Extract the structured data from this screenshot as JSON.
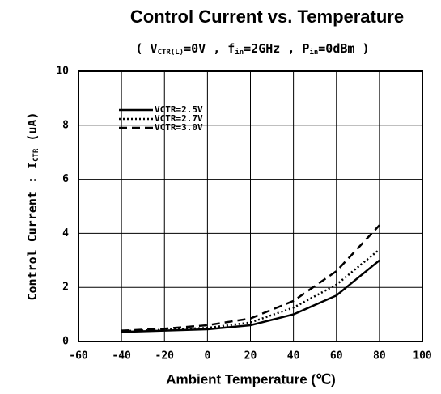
{
  "chart_data": {
    "type": "line",
    "title": "Control Current vs. Temperature",
    "subtitle": [
      "( V",
      "CTR(L)",
      "=0V , f",
      "in",
      "=2GHz , P",
      "in",
      "=0dBm )"
    ],
    "xlabel": "Ambient Temperature (℃)",
    "ylabel": [
      "Control Current : I",
      "CTR",
      " (uA)"
    ],
    "x": [
      -40,
      -20,
      0,
      20,
      40,
      60,
      80
    ],
    "series": [
      {
        "name": "VCTR=2.5V",
        "color": "#000000",
        "style": "solid",
        "values": [
          0.35,
          0.4,
          0.45,
          0.6,
          1.0,
          1.7,
          3.0
        ]
      },
      {
        "name": "VCTR=2.7V",
        "color": "#000000",
        "style": "dotted",
        "values": [
          0.38,
          0.43,
          0.5,
          0.7,
          1.25,
          2.1,
          3.4
        ]
      },
      {
        "name": "VCTR=3.0V",
        "color": "#000000",
        "style": "dashed",
        "values": [
          0.4,
          0.47,
          0.6,
          0.85,
          1.5,
          2.6,
          4.3
        ]
      }
    ],
    "xlim": [
      -60,
      100
    ],
    "xticks": [
      -60,
      -40,
      -20,
      0,
      20,
      40,
      60,
      80,
      100
    ],
    "ylim": [
      0,
      10
    ],
    "yticks": [
      0,
      2,
      4,
      6,
      8,
      10
    ],
    "grid": true,
    "legend": "upper left"
  }
}
